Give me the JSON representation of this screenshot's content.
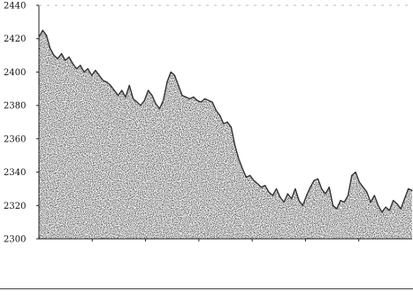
{
  "chart_data": {
    "type": "area",
    "title": "",
    "xlabel": "",
    "ylabel": "",
    "ylim": [
      2300,
      2440
    ],
    "yticks": [
      "2300",
      "2320",
      "2340",
      "2360",
      "2380",
      "2400",
      "2420",
      "2440"
    ],
    "x": [
      0,
      1,
      2,
      3,
      4,
      5,
      6,
      7,
      8,
      9,
      10,
      11,
      12,
      13,
      14,
      15,
      16,
      17,
      18,
      19,
      20,
      21,
      22,
      23,
      24,
      25,
      26,
      27,
      28,
      29,
      30,
      31,
      32,
      33,
      34,
      35,
      36,
      37,
      38,
      39,
      40,
      41,
      42,
      43,
      44,
      45,
      46,
      47,
      48,
      49,
      50,
      51,
      52,
      53,
      54,
      55,
      56,
      57,
      58,
      59,
      60,
      61,
      62,
      63,
      64,
      65,
      66,
      67,
      68,
      69,
      70,
      71,
      72,
      73,
      74,
      75,
      76,
      77,
      78,
      79,
      80,
      81,
      82,
      83,
      84,
      85,
      86,
      87,
      88,
      89,
      90,
      91,
      92,
      93,
      94,
      95,
      96,
      97,
      98,
      99
    ],
    "series": [
      {
        "values": [
          2421,
          2425,
          2422,
          2414,
          2410,
          2408,
          2411,
          2407,
          2409,
          2405,
          2402,
          2404,
          2400,
          2402,
          2398,
          2401,
          2398,
          2395,
          2394,
          2392,
          2389,
          2386,
          2389,
          2385,
          2392,
          2384,
          2382,
          2380,
          2383,
          2389,
          2386,
          2381,
          2378,
          2383,
          2394,
          2400,
          2398,
          2392,
          2386,
          2385,
          2384,
          2385,
          2383,
          2382,
          2384,
          2383,
          2382,
          2377,
          2374,
          2369,
          2370,
          2367,
          2356,
          2348,
          2342,
          2337,
          2338,
          2335,
          2333,
          2331,
          2332,
          2328,
          2326,
          2330,
          2325,
          2322,
          2327,
          2324,
          2330,
          2323,
          2320,
          2326,
          2331,
          2335,
          2336,
          2330,
          2327,
          2331,
          2320,
          2318,
          2323,
          2322,
          2326,
          2338,
          2340,
          2334,
          2331,
          2328,
          2322,
          2326,
          2320,
          2316,
          2319,
          2317,
          2323,
          2321,
          2318,
          2324,
          2330,
          2329
        ],
        "color": "#333333"
      }
    ]
  }
}
